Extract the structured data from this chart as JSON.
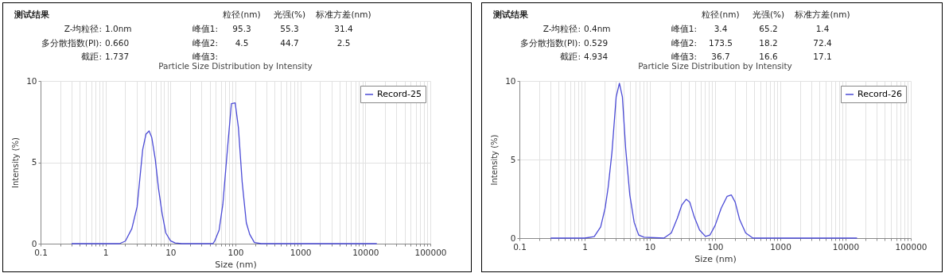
{
  "chart_data": [
    {
      "type": "line",
      "title": "Particle Size Distribution by Intensity",
      "xlabel": "Size (nm)",
      "ylabel": "Intensity (%)",
      "annotations": [
        "测试结果",
        "粒径(nm)",
        "光强(%)",
        "标准方差(nm)",
        "Z-均粒径:",
        "1.0nm",
        "峰值1:",
        "95.3",
        "55.3",
        "31.4",
        "多分散指数(PI):",
        "0.660",
        "峰值2:",
        "4.5",
        "44.7",
        "2.5",
        "截距:",
        "1.737",
        "峰值3:"
      ],
      "series": [
        {
          "name": "Record-25",
          "color": "#4b4bd6",
          "x": [
            0.3,
            1,
            1.64,
            2.02,
            2.54,
            3.06,
            3.73,
            4.19,
            4.69,
            5.15,
            5.83,
            6.53,
            7.4,
            8.47,
            10,
            11.8,
            15,
            45,
            47.9,
            56,
            64,
            74,
            86.5,
            99,
            111,
            127,
            147,
            166,
            196,
            250,
            1000,
            15000
          ],
          "values": [
            0,
            0,
            0,
            0.16,
            0.92,
            2.26,
            5.77,
            6.73,
            6.93,
            6.52,
            5.19,
            3.41,
            1.9,
            0.66,
            0.18,
            0.04,
            0,
            0,
            0.16,
            0.83,
            2.43,
            5.45,
            8.6,
            8.65,
            7.14,
            3.77,
            1.28,
            0.57,
            0.07,
            0,
            0,
            0
          ]
        }
      ],
      "log": "x",
      "xlim": [
        0.1,
        100000
      ],
      "ylim": [
        0,
        10
      ],
      "yticks": [
        0,
        5,
        10
      ],
      "xticks": [
        0.1,
        {
          "value": 0.2,
          "label": null
        },
        {
          "value": 0.3,
          "label": null
        },
        {
          "value": 0.4,
          "label": null
        },
        {
          "value": 0.5,
          "label": null
        },
        {
          "value": 0.6,
          "label": null
        },
        {
          "value": 0.7,
          "label": null
        },
        {
          "value": 0.8,
          "label": null
        },
        {
          "value": 0.9,
          "label": null
        },
        1,
        {
          "value": 2,
          "label": null
        },
        {
          "value": 3,
          "label": null
        },
        {
          "value": 4,
          "label": null
        },
        {
          "value": 5,
          "label": null
        },
        {
          "value": 6,
          "label": null
        },
        {
          "value": 7,
          "label": null
        },
        {
          "value": 8,
          "label": null
        },
        {
          "value": 9,
          "label": null
        },
        10,
        {
          "value": 20,
          "label": null
        },
        {
          "value": 30,
          "label": null
        },
        {
          "value": 40,
          "label": null
        },
        {
          "value": 50,
          "label": null
        },
        {
          "value": 60,
          "label": null
        },
        {
          "value": 70,
          "label": null
        },
        {
          "value": 80,
          "label": null
        },
        {
          "value": 90,
          "label": null
        },
        100,
        {
          "value": 200,
          "label": null
        },
        {
          "value": 300,
          "label": null
        },
        {
          "value": 400,
          "label": null
        },
        {
          "value": 500,
          "label": null
        },
        {
          "value": 600,
          "label": null
        },
        {
          "value": 700,
          "label": null
        },
        {
          "value": 800,
          "label": null
        },
        {
          "value": 900,
          "label": null
        },
        1000,
        {
          "value": 2000,
          "label": null
        },
        {
          "value": 3000,
          "label": null
        },
        {
          "value": 4000,
          "label": null
        },
        {
          "value": 5000,
          "label": null
        },
        {
          "value": 6000,
          "label": null
        },
        {
          "value": 7000,
          "label": null
        },
        {
          "value": 8000,
          "label": null
        },
        {
          "value": 9000,
          "label": null
        },
        10000,
        {
          "value": 20000,
          "label": null
        },
        {
          "value": 30000,
          "label": null
        },
        {
          "value": 40000,
          "label": null
        },
        {
          "value": 50000,
          "label": null
        },
        {
          "value": 60000,
          "label": null
        },
        {
          "value": 70000,
          "label": null
        },
        {
          "value": 80000,
          "label": null
        },
        {
          "value": 90000,
          "label": null
        },
        100000
      ],
      "grid": true,
      "legend": "top right"
    },
    {
      "type": "line",
      "title": "Particle Size Distribution by Intensity",
      "xlabel": "Size (nm)",
      "ylabel": "Intensity (%)",
      "annotations": [
        "测试结果",
        "粒径(nm)",
        "光强(%)",
        "标准方差(nm)",
        "Z-均粒径:",
        "0.4nm",
        "峰值1:",
        "3.4",
        "65.2",
        "1.4",
        "多分散指数(PI):",
        "0.529",
        "峰值2:",
        "173.5",
        "18.2",
        "72.4",
        "截距:",
        "4.934",
        "峰值3:",
        "36.7",
        "16.6",
        "17.1"
      ],
      "series": [
        {
          "name": "Record-26",
          "color": "#4b4bd6",
          "x": [
            0.3,
            1,
            1.4,
            1.76,
            2.06,
            2.29,
            2.62,
            3.04,
            3.41,
            3.79,
            4.25,
            4.92,
            5.75,
            6.73,
            8.13,
            16.4,
            21.3,
            26.3,
            30.8,
            36,
            40.9,
            47.8,
            57.7,
            71.1,
            83.2,
            100,
            124,
            153,
            177,
            203,
            238,
            294,
            380,
            1000,
            15000
          ],
          "values": [
            0,
            0,
            0.09,
            0.71,
            1.91,
            3.22,
            5.45,
            8.98,
            9.85,
            8.98,
            5.72,
            2.75,
            0.99,
            0.2,
            0.06,
            0,
            0.33,
            1.26,
            2.1,
            2.47,
            2.29,
            1.36,
            0.52,
            0.11,
            0.19,
            0.8,
            1.91,
            2.66,
            2.75,
            2.29,
            1.17,
            0.33,
            0,
            0,
            0
          ]
        }
      ],
      "log": "x",
      "xlim": [
        0.1,
        100000
      ],
      "ylim": [
        0,
        10
      ],
      "yticks": [
        0,
        5,
        10
      ],
      "xticks": [
        0.1,
        {
          "value": 0.2,
          "label": null
        },
        {
          "value": 0.3,
          "label": null
        },
        {
          "value": 0.4,
          "label": null
        },
        {
          "value": 0.5,
          "label": null
        },
        {
          "value": 0.6,
          "label": null
        },
        {
          "value": 0.7,
          "label": null
        },
        {
          "value": 0.8,
          "label": null
        },
        {
          "value": 0.9,
          "label": null
        },
        1,
        {
          "value": 2,
          "label": null
        },
        {
          "value": 3,
          "label": null
        },
        {
          "value": 4,
          "label": null
        },
        {
          "value": 5,
          "label": null
        },
        {
          "value": 6,
          "label": null
        },
        {
          "value": 7,
          "label": null
        },
        {
          "value": 8,
          "label": null
        },
        {
          "value": 9,
          "label": null
        },
        10,
        {
          "value": 20,
          "label": null
        },
        {
          "value": 30,
          "label": null
        },
        {
          "value": 40,
          "label": null
        },
        {
          "value": 50,
          "label": null
        },
        {
          "value": 60,
          "label": null
        },
        {
          "value": 70,
          "label": null
        },
        {
          "value": 80,
          "label": null
        },
        {
          "value": 90,
          "label": null
        },
        100,
        {
          "value": 200,
          "label": null
        },
        {
          "value": 300,
          "label": null
        },
        {
          "value": 400,
          "label": null
        },
        {
          "value": 500,
          "label": null
        },
        {
          "value": 600,
          "label": null
        },
        {
          "value": 700,
          "label": null
        },
        {
          "value": 800,
          "label": null
        },
        {
          "value": 900,
          "label": null
        },
        1000,
        {
          "value": 2000,
          "label": null
        },
        {
          "value": 3000,
          "label": null
        },
        {
          "value": 4000,
          "label": null
        },
        {
          "value": 5000,
          "label": null
        },
        {
          "value": 6000,
          "label": null
        },
        {
          "value": 7000,
          "label": null
        },
        {
          "value": 8000,
          "label": null
        },
        {
          "value": 9000,
          "label": null
        },
        10000,
        {
          "value": 20000,
          "label": null
        },
        {
          "value": 30000,
          "label": null
        },
        {
          "value": 40000,
          "label": null
        },
        {
          "value": 50000,
          "label": null
        },
        {
          "value": 60000,
          "label": null
        },
        {
          "value": 70000,
          "label": null
        },
        {
          "value": 80000,
          "label": null
        },
        {
          "value": 90000,
          "label": null
        },
        100000
      ],
      "grid": true,
      "legend": "top right"
    }
  ]
}
